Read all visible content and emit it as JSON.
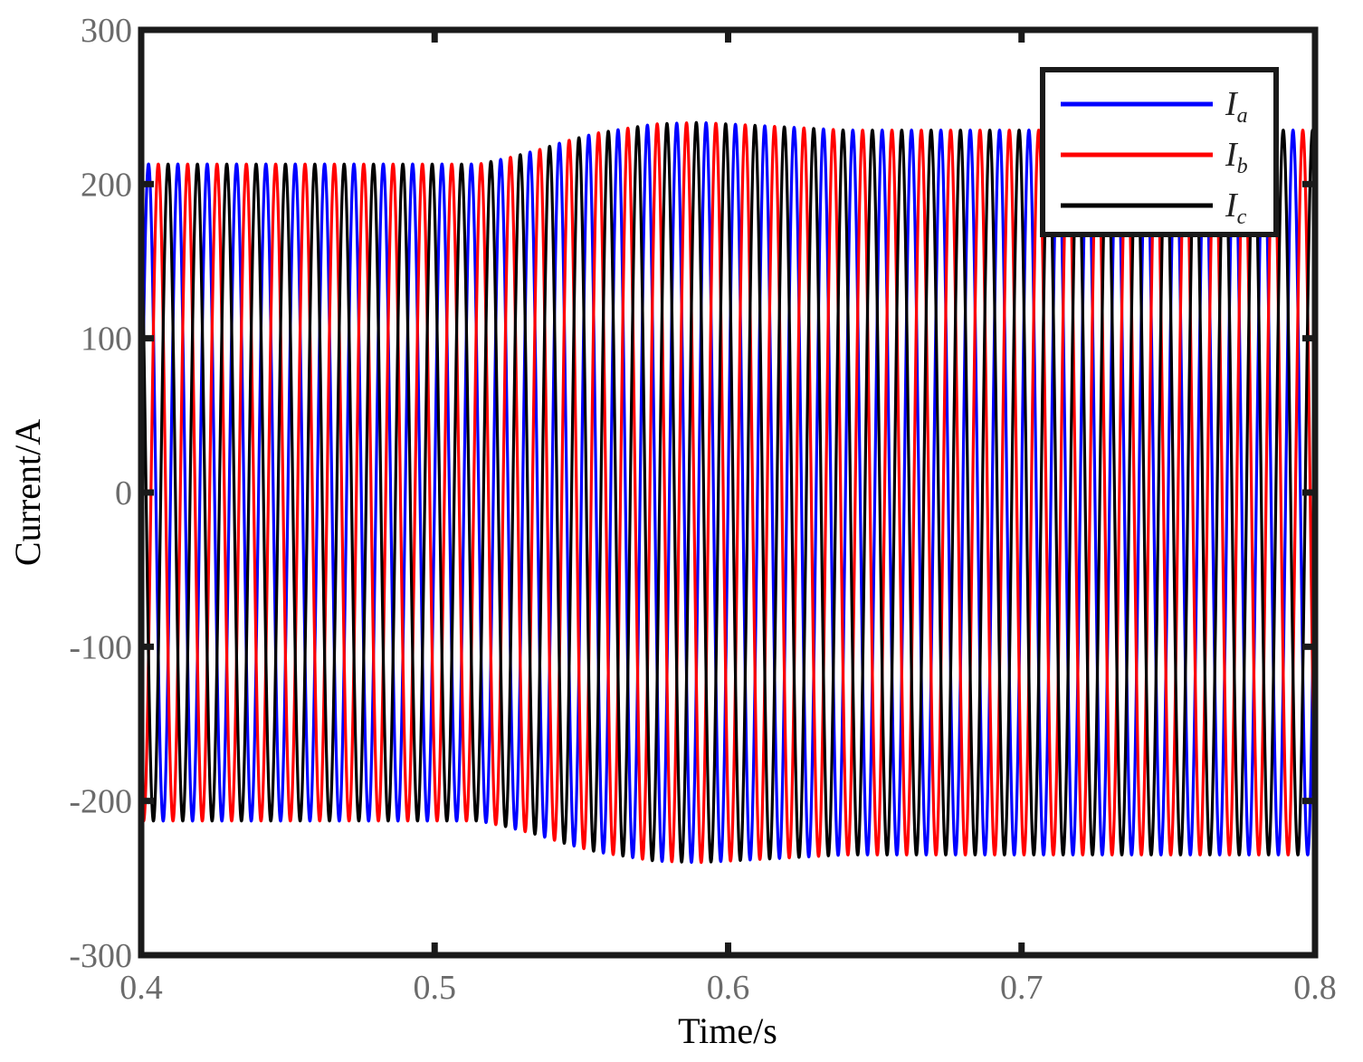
{
  "chart_data": {
    "type": "line",
    "title": "",
    "xlabel": "Time/s",
    "ylabel": "Current/A",
    "xlim": [
      0.4,
      0.8
    ],
    "ylim": [
      -300,
      300
    ],
    "xticks": [
      0.4,
      0.5,
      0.6,
      0.7,
      0.8
    ],
    "xtick_labels": [
      "0.4",
      "0.5",
      "0.6",
      "0.7",
      "0.8"
    ],
    "yticks": [
      300,
      200,
      100,
      0,
      -100,
      -200,
      -300
    ],
    "ytick_labels": [
      "300",
      "200",
      "100",
      "0",
      "-100",
      "-200",
      "-300"
    ],
    "grid": false,
    "legend_position": "top-right",
    "frequency_hz": 100,
    "amplitude_profile": {
      "t": [
        0.4,
        0.515,
        0.525,
        0.535,
        0.545,
        0.555,
        0.565,
        0.575,
        0.59,
        0.61,
        0.64,
        0.8
      ],
      "amplitude": [
        213,
        213,
        217,
        222,
        228,
        233,
        236,
        239,
        240,
        238,
        235,
        235
      ]
    },
    "series": [
      {
        "name": "I",
        "subscript": "a",
        "color": "#0000ff",
        "phase_deg": 0
      },
      {
        "name": "I",
        "subscript": "b",
        "color": "#ff0000",
        "phase_deg": -120
      },
      {
        "name": "I",
        "subscript": "c",
        "color": "#000000",
        "phase_deg": 120
      }
    ]
  }
}
